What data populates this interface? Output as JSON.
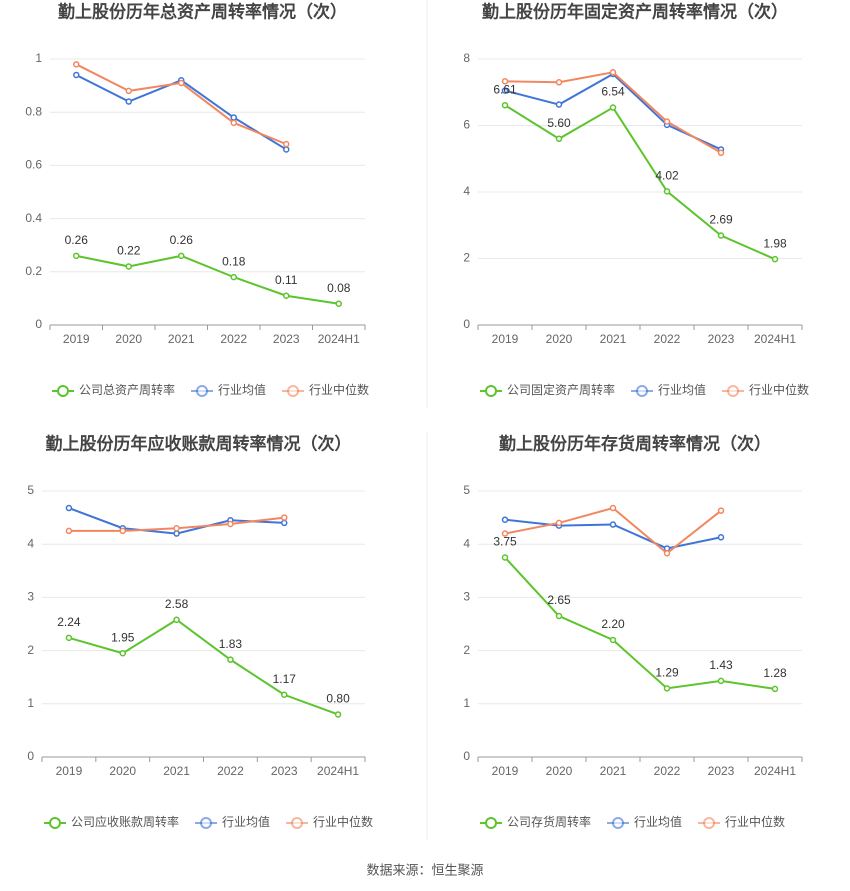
{
  "chart_data": [
    {
      "type": "line",
      "title": "勤上股份历年总资产周转率情况（次）",
      "categories": [
        "2019",
        "2020",
        "2021",
        "2022",
        "2023",
        "2024H1"
      ],
      "ylim": [
        0,
        1
      ],
      "yticks": [
        0,
        0.2,
        0.4,
        0.6,
        0.8,
        1
      ],
      "grid": true,
      "series": [
        {
          "name": "公司总资产周转率",
          "color": "#5cc42c",
          "values": [
            0.26,
            0.22,
            0.26,
            0.18,
            0.11,
            0.08
          ],
          "value_labels": [
            "0.26",
            "0.22",
            "0.26",
            "0.18",
            "0.11",
            "0.08"
          ]
        },
        {
          "name": "行业均值",
          "color": "#3f74d8",
          "values": [
            0.94,
            0.84,
            0.92,
            0.78,
            0.66,
            null
          ]
        },
        {
          "name": "行业中位数",
          "color": "#f2875f",
          "values": [
            0.98,
            0.88,
            0.91,
            0.76,
            0.68,
            null
          ]
        }
      ]
    },
    {
      "type": "line",
      "title": "勤上股份历年固定资产周转率情况（次）",
      "categories": [
        "2019",
        "2020",
        "2021",
        "2022",
        "2023",
        "2024H1"
      ],
      "ylim": [
        0,
        8
      ],
      "yticks": [
        0,
        2,
        4,
        6,
        8
      ],
      "grid": true,
      "series": [
        {
          "name": "公司固定资产周转率",
          "color": "#5cc42c",
          "values": [
            6.61,
            5.6,
            6.54,
            4.02,
            2.69,
            1.98
          ],
          "value_labels": [
            "6.61",
            "5.60",
            "6.54",
            "4.02",
            "2.69",
            "1.98"
          ]
        },
        {
          "name": "行业均值",
          "color": "#3f74d8",
          "values": [
            7.05,
            6.63,
            7.55,
            6.02,
            5.28,
            null
          ]
        },
        {
          "name": "行业中位数",
          "color": "#f2875f",
          "values": [
            7.33,
            7.3,
            7.6,
            6.12,
            5.18,
            null
          ]
        }
      ]
    },
    {
      "type": "line",
      "title": "勤上股份历年应收账款周转率情况（次）",
      "categories": [
        "2019",
        "2020",
        "2021",
        "2022",
        "2023",
        "2024H1"
      ],
      "ylim": [
        0,
        5
      ],
      "yticks": [
        0,
        1,
        2,
        3,
        4,
        5
      ],
      "grid": true,
      "series": [
        {
          "name": "公司应收账款周转率",
          "color": "#5cc42c",
          "values": [
            2.24,
            1.95,
            2.58,
            1.83,
            1.17,
            0.8
          ],
          "value_labels": [
            "2.24",
            "1.95",
            "2.58",
            "1.83",
            "1.17",
            "0.80"
          ]
        },
        {
          "name": "行业均值",
          "color": "#3f74d8",
          "values": [
            4.68,
            4.3,
            4.2,
            4.45,
            4.4,
            null
          ]
        },
        {
          "name": "行业中位数",
          "color": "#f2875f",
          "values": [
            4.25,
            4.25,
            4.3,
            4.38,
            4.5,
            null
          ]
        }
      ]
    },
    {
      "type": "line",
      "title": "勤上股份历年存货周转率情况（次）",
      "categories": [
        "2019",
        "2020",
        "2021",
        "2022",
        "2023",
        "2024H1"
      ],
      "ylim": [
        0,
        5
      ],
      "yticks": [
        0,
        1,
        2,
        3,
        4,
        5
      ],
      "grid": true,
      "series": [
        {
          "name": "公司存货周转率",
          "color": "#5cc42c",
          "values": [
            3.75,
            2.65,
            2.2,
            1.29,
            1.43,
            1.28
          ],
          "value_labels": [
            "3.75",
            "2.65",
            "2.20",
            "1.29",
            "1.43",
            "1.28"
          ]
        },
        {
          "name": "行业均值",
          "color": "#3f74d8",
          "values": [
            4.46,
            4.35,
            4.37,
            3.92,
            4.13,
            null
          ]
        },
        {
          "name": "行业中位数",
          "color": "#f2875f",
          "values": [
            4.2,
            4.4,
            4.68,
            3.83,
            4.63,
            null
          ]
        }
      ]
    }
  ],
  "source": "数据来源：恒生聚源"
}
